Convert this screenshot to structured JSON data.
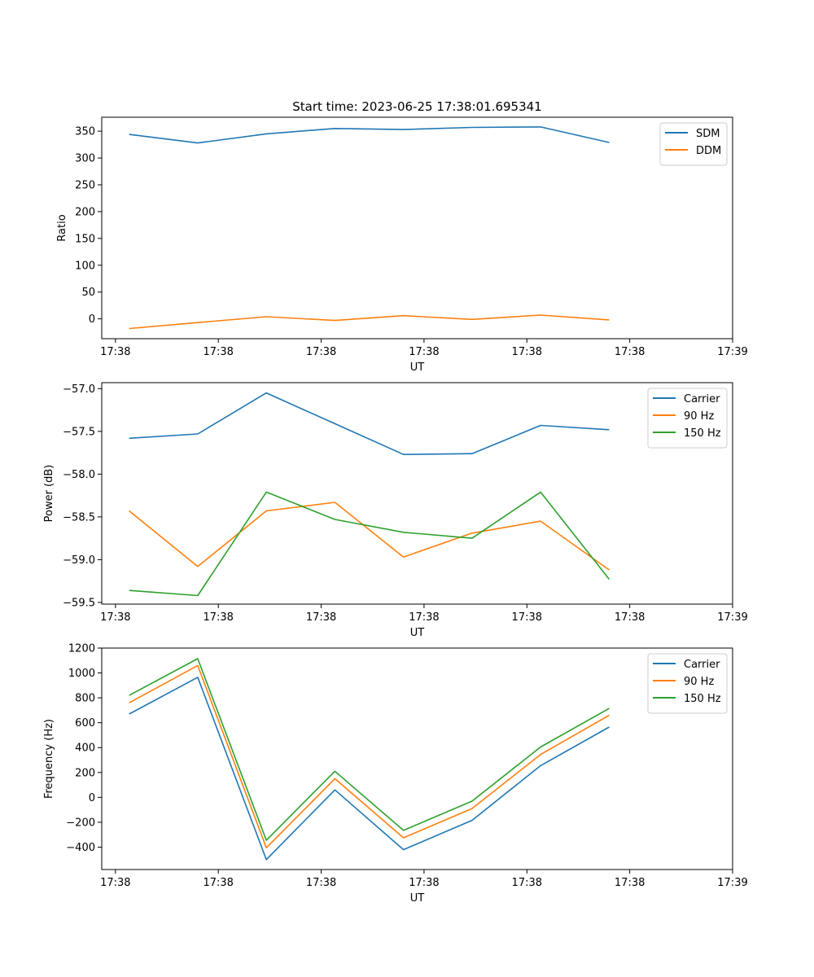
{
  "chart_data": [
    {
      "type": "line",
      "title": "Start time: 2023-06-25 17:38:01.695341",
      "xlabel": "UT",
      "ylabel": "Ratio",
      "x": [
        1,
        2,
        3,
        4,
        5,
        6,
        7,
        8
      ],
      "x_ticks": [
        0.8,
        2.3,
        3.8,
        5.3,
        6.8,
        8.3,
        9.8
      ],
      "x_tick_labels": [
        "17:38",
        "17:38",
        "17:38",
        "17:38",
        "17:38",
        "17:38",
        "17:39"
      ],
      "xlim": [
        0.6,
        9.8
      ],
      "ylim": [
        -37,
        376
      ],
      "y_ticks": [
        0,
        50,
        100,
        150,
        200,
        250,
        300,
        350
      ],
      "legend": "top-right",
      "grid": false,
      "series": [
        {
          "name": "SDM",
          "color": "#1f77b4",
          "values": [
            344,
            328,
            345,
            355,
            353,
            357,
            358,
            329
          ]
        },
        {
          "name": "DDM",
          "color": "#ff7f0e",
          "values": [
            -18,
            -7,
            4,
            -3,
            6,
            -1,
            7,
            -2
          ]
        }
      ]
    },
    {
      "type": "line",
      "xlabel": "UT",
      "ylabel": "Power (dB)",
      "x": [
        1,
        2,
        3,
        4,
        5,
        6,
        7,
        8
      ],
      "x_ticks": [
        0.8,
        2.3,
        3.8,
        5.3,
        6.8,
        8.3,
        9.8
      ],
      "x_tick_labels": [
        "17:38",
        "17:38",
        "17:38",
        "17:38",
        "17:38",
        "17:38",
        "17:39"
      ],
      "xlim": [
        0.6,
        9.8
      ],
      "ylim": [
        -59.52,
        -56.93
      ],
      "y_ticks": [
        -59.5,
        -59.0,
        -58.5,
        -58.0,
        -57.5,
        -57.0
      ],
      "legend": "top-right",
      "grid": false,
      "series": [
        {
          "name": "Carrier",
          "color": "#1f77b4",
          "values": [
            -57.58,
            -57.53,
            -57.05,
            -57.41,
            -57.77,
            -57.76,
            -57.43,
            -57.48
          ]
        },
        {
          "name": "90 Hz",
          "color": "#ff7f0e",
          "values": [
            -58.43,
            -59.08,
            -58.43,
            -58.33,
            -58.97,
            -58.69,
            -58.55,
            -59.12
          ]
        },
        {
          "name": "150 Hz",
          "color": "#2ca02c",
          "values": [
            -59.36,
            -59.42,
            -58.21,
            -58.53,
            -58.68,
            -58.75,
            -58.21,
            -59.23
          ]
        }
      ]
    },
    {
      "type": "line",
      "xlabel": "UT",
      "ylabel": "Frequency (Hz)",
      "x": [
        1,
        2,
        3,
        4,
        5,
        6,
        7,
        8
      ],
      "x_ticks": [
        0.8,
        2.3,
        3.8,
        5.3,
        6.8,
        8.3,
        9.8
      ],
      "x_tick_labels": [
        "17:38",
        "17:38",
        "17:38",
        "17:38",
        "17:38",
        "17:38",
        "17:39"
      ],
      "xlim": [
        0.6,
        9.8
      ],
      "ylim": [
        -580,
        1200
      ],
      "y_ticks": [
        -400,
        -200,
        0,
        200,
        400,
        600,
        800,
        1000,
        1200
      ],
      "legend": "top-right",
      "grid": false,
      "series": [
        {
          "name": "Carrier",
          "color": "#1f77b4",
          "values": [
            670,
            965,
            -500,
            60,
            -420,
            -185,
            255,
            565
          ]
        },
        {
          "name": "90 Hz",
          "color": "#ff7f0e",
          "values": [
            760,
            1060,
            -405,
            150,
            -325,
            -90,
            345,
            660
          ]
        },
        {
          "name": "150 Hz",
          "color": "#2ca02c",
          "values": [
            820,
            1115,
            -345,
            210,
            -265,
            -30,
            405,
            715
          ]
        }
      ]
    }
  ]
}
